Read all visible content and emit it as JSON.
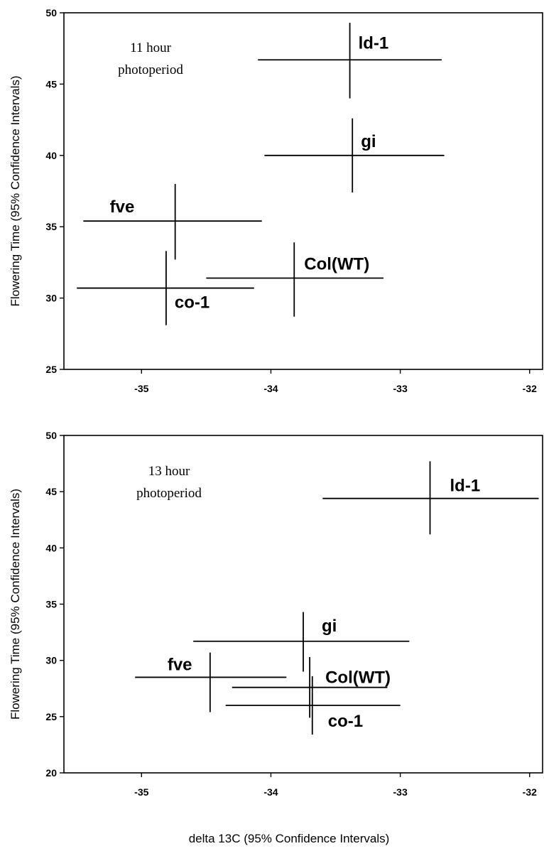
{
  "chart_data": [
    {
      "type": "scatter",
      "annotation": [
        "11 hour",
        "photoperiod"
      ],
      "ylabel": "Flowering Time (95% Confidence Intervals)",
      "xlim": [
        -35.6,
        -31.9
      ],
      "ylim": [
        25,
        50
      ],
      "xticks": [
        "-35",
        "-34",
        "-33",
        "-32"
      ],
      "yticks": [
        "25",
        "30",
        "35",
        "40",
        "45",
        "50"
      ],
      "points": [
        {
          "label": "ld-1",
          "x": -33.39,
          "y": 46.7,
          "x_low": -34.1,
          "x_high": -32.68,
          "y_low": 44.0,
          "y_high": 49.3
        },
        {
          "label": "gi",
          "x": -33.37,
          "y": 40.0,
          "x_low": -34.05,
          "x_high": -32.66,
          "y_low": 37.4,
          "y_high": 42.6
        },
        {
          "label": "fve",
          "x": -34.74,
          "y": 35.4,
          "x_low": -35.45,
          "x_high": -34.07,
          "y_low": 32.7,
          "y_high": 38.0
        },
        {
          "label": "Col(WT)",
          "x": -33.82,
          "y": 31.4,
          "x_low": -34.5,
          "x_high": -33.13,
          "y_low": 28.7,
          "y_high": 33.9
        },
        {
          "label": "co-1",
          "x": -34.81,
          "y": 30.7,
          "x_low": -35.5,
          "x_high": -34.13,
          "y_low": 28.1,
          "y_high": 33.3
        }
      ]
    },
    {
      "type": "scatter",
      "annotation": [
        "13 hour",
        "photoperiod"
      ],
      "xlabel": "delta 13C (95% Confidence Intervals)",
      "ylabel": "Flowering Time (95% Confidence Intervals)",
      "xlim": [
        -35.6,
        -31.9
      ],
      "ylim": [
        20,
        50
      ],
      "xticks": [
        "-35",
        "-34",
        "-33",
        "-32"
      ],
      "yticks": [
        "20",
        "25",
        "30",
        "35",
        "40",
        "45",
        "50"
      ],
      "points": [
        {
          "label": "ld-1",
          "x": -32.77,
          "y": 44.4,
          "x_low": -33.6,
          "x_high": -31.93,
          "y_low": 41.2,
          "y_high": 47.7
        },
        {
          "label": "gi",
          "x": -33.75,
          "y": 31.7,
          "x_low": -34.6,
          "x_high": -32.93,
          "y_low": 29.0,
          "y_high": 34.3
        },
        {
          "label": "fve",
          "x": -34.47,
          "y": 28.5,
          "x_low": -35.05,
          "x_high": -33.88,
          "y_low": 25.4,
          "y_high": 30.7
        },
        {
          "label": "Col(WT)",
          "x": -33.7,
          "y": 27.6,
          "x_low": -34.3,
          "x_high": -33.1,
          "y_low": 24.9,
          "y_high": 30.3
        },
        {
          "label": "co-1",
          "x": -33.68,
          "y": 26.0,
          "x_low": -34.35,
          "x_high": -33.0,
          "y_low": 23.4,
          "y_high": 28.6
        }
      ]
    }
  ]
}
